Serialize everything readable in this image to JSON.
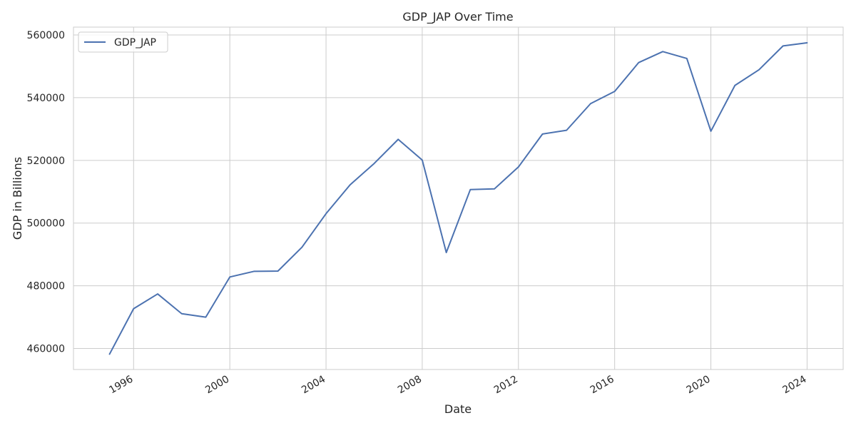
{
  "chart_data": {
    "type": "line",
    "title": "GDP_JAP Over Time",
    "xlabel": "Date",
    "ylabel": "GDP in Billions",
    "x_ticks": [
      "1996",
      "2000",
      "2004",
      "2008",
      "2012",
      "2016",
      "2020",
      "2024"
    ],
    "y_ticks": [
      "460000",
      "480000",
      "500000",
      "520000",
      "540000",
      "560000"
    ],
    "xlim": [
      1993.5,
      2025.5
    ],
    "ylim": [
      453300,
      562500
    ],
    "grid": true,
    "legend_position": "top-left",
    "colors": {
      "series": "#4c72b0",
      "grid": "#cccccc",
      "text": "#262626"
    },
    "series": [
      {
        "name": "GDP_JAP",
        "x": [
          1995,
          1996,
          1997,
          1998,
          1999,
          2000,
          2001,
          2002,
          2003,
          2004,
          2005,
          2006,
          2007,
          2008,
          2009,
          2010,
          2011,
          2012,
          2013,
          2014,
          2015,
          2016,
          2017,
          2018,
          2019,
          2020,
          2021,
          2022,
          2023,
          2024
        ],
        "values": [
          458200,
          472700,
          477400,
          471100,
          470000,
          482800,
          484600,
          484700,
          492300,
          503000,
          512200,
          519000,
          526700,
          520100,
          490600,
          510700,
          510900,
          517900,
          528400,
          529600,
          538100,
          542000,
          551200,
          554700,
          552500,
          529300,
          543900,
          548900,
          556500,
          557500
        ]
      }
    ]
  }
}
